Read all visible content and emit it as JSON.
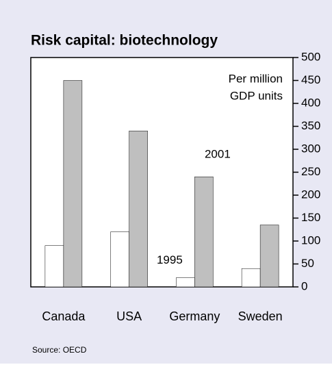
{
  "chart_data": {
    "type": "bar",
    "title": "Risk capital: biotechnology",
    "y_label": [
      "Per million",
      "GDP units"
    ],
    "source": "Source: OECD",
    "categories": [
      "Canada",
      "USA",
      "Germany",
      "Sweden"
    ],
    "series": [
      {
        "name": "1995",
        "color": "#ffffff",
        "values": [
          90,
          120,
          20,
          40
        ]
      },
      {
        "name": "2001",
        "color": "#bfbfbf",
        "values": [
          450,
          340,
          240,
          135
        ]
      }
    ],
    "ylim": [
      0,
      500
    ],
    "yticks": [
      0,
      50,
      100,
      150,
      200,
      250,
      300,
      350,
      400,
      450,
      500
    ],
    "grid": false
  }
}
